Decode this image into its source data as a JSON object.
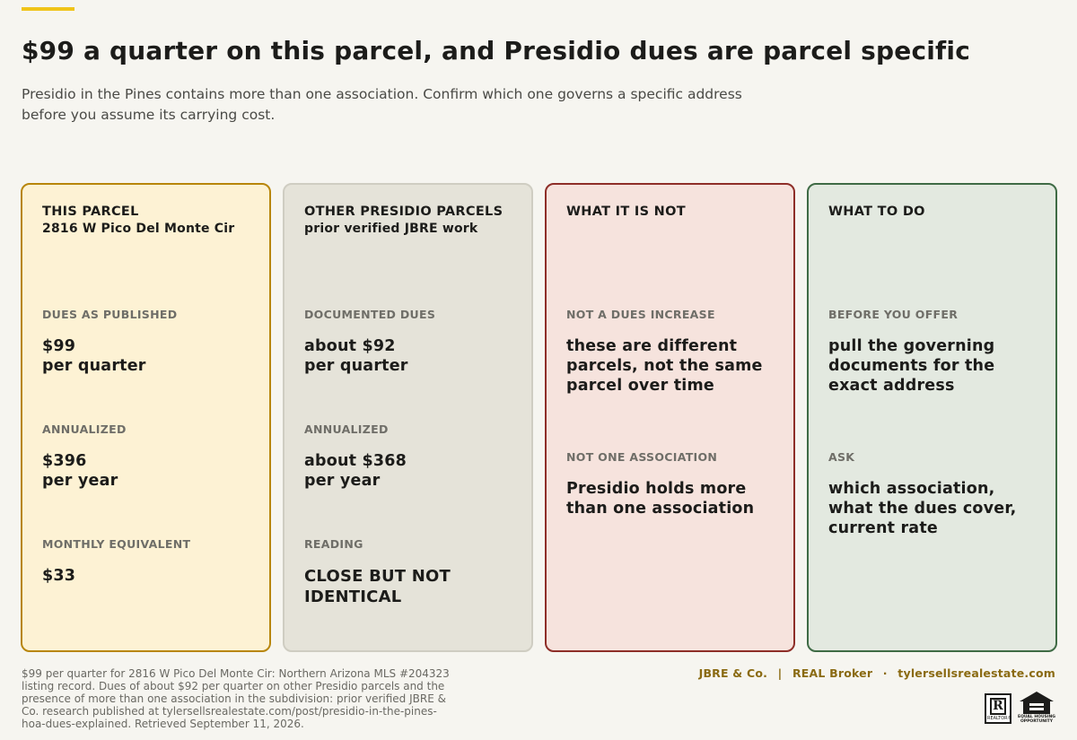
{
  "header": {
    "title": "$99 a quarter on this parcel, and Presidio dues are parcel specific",
    "subtitle": "Presidio in the Pines contains more than one association. Confirm which one governs a specific address before you assume its carrying cost."
  },
  "cards": [
    {
      "head": "THIS PARCEL",
      "sub": "2816 W Pico Del Monte Cir",
      "blocks": [
        {
          "label": "DUES AS PUBLISHED",
          "value_line1": "$99",
          "value_line2": "per quarter"
        },
        {
          "label": "ANNUALIZED",
          "value_line1": "$396",
          "value_line2": "per year"
        },
        {
          "label": "MONTHLY EQUIVALENT",
          "value_line1": "$33",
          "value_line2": ""
        }
      ]
    },
    {
      "head": "OTHER PRESIDIO PARCELS",
      "sub": "prior verified JBRE work",
      "blocks": [
        {
          "label": "DOCUMENTED DUES",
          "value_line1": "about $92",
          "value_line2": "per quarter"
        },
        {
          "label": "ANNUALIZED",
          "value_line1": "about $368",
          "value_line2": "per year"
        },
        {
          "label": "READING",
          "value_line1": "CLOSE BUT NOT",
          "value_line2": "IDENTICAL"
        }
      ]
    },
    {
      "head": "WHAT IT IS NOT",
      "sub": "",
      "blocks": [
        {
          "label": "NOT A DUES INCREASE",
          "value_line1": "these are different",
          "value_line2": "parcels, not the same",
          "value_line3": "parcel over time"
        },
        {
          "label": "NOT ONE ASSOCIATION",
          "value_line1": "Presidio holds more",
          "value_line2": "than one association"
        }
      ]
    },
    {
      "head": "WHAT TO DO",
      "sub": "",
      "blocks": [
        {
          "label": "BEFORE YOU OFFER",
          "value_line1": "pull the governing",
          "value_line2": "documents for the",
          "value_line3": "exact address"
        },
        {
          "label": "ASK",
          "value_line1": "which association,",
          "value_line2": "what the dues cover,",
          "value_line3": "current rate"
        }
      ]
    }
  ],
  "footer": {
    "note": "$99 per quarter for 2816 W Pico Del Monte Cir: Northern Arizona MLS #204323 listing record. Dues of about $92 per quarter on other Presidio parcels and the presence of more than one association in the subdivision: prior verified JBRE & Co. research published at tylersellsrealestate.com/post/presidio-in-the-pines-hoa-dues-explained. Retrieved September 11, 2026.",
    "brand_company": "JBRE & Co.",
    "brand_sep1": "|",
    "brand_broker": "REAL Broker",
    "brand_sep2": "·",
    "brand_site": "tylersellsrealestate.com",
    "realtor_logo_letter": "R",
    "realtor_logo_text": "REALTOR®",
    "eho_logo_text": "EQUAL HOUSING OPPORTUNITY"
  },
  "colors": {
    "accent": "#f0c419",
    "card_parcel_border": "#b8860b",
    "card_other_border": "#cfcdc2",
    "card_not_border": "#8e2e28",
    "card_todo_border": "#3f6b45",
    "brand_text": "#8a6a12"
  },
  "icons": [
    "realtor-logo-icon",
    "equal-housing-icon"
  ]
}
